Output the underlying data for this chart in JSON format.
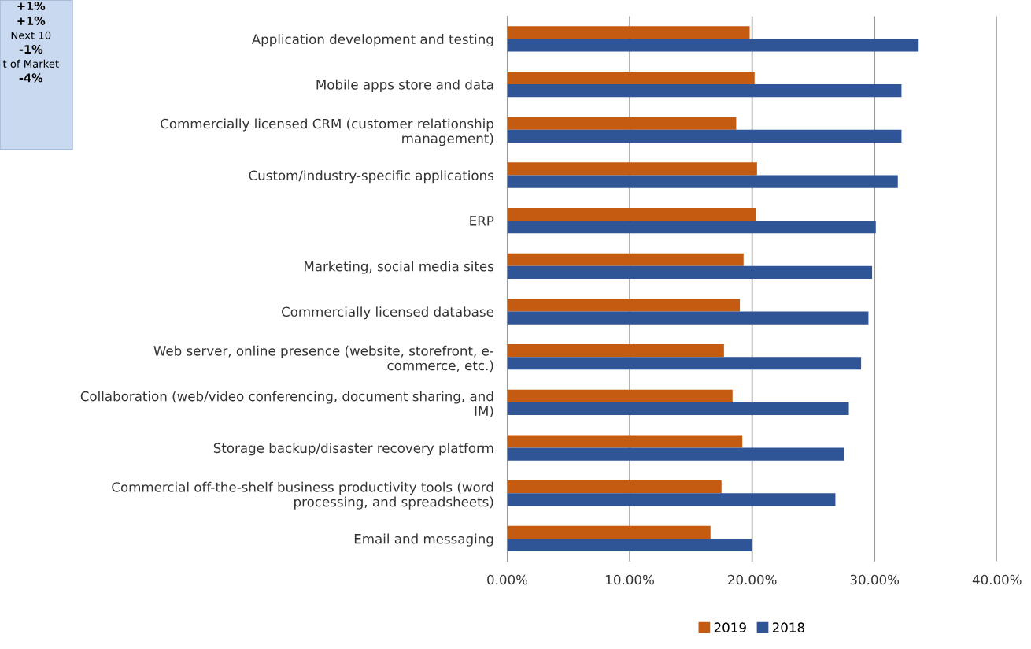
{
  "chart_data": {
    "type": "bar",
    "orientation": "horizontal",
    "categories": [
      "Application development and testing",
      "Mobile apps store and data",
      "Commercially licensed CRM (customer relationship\nmanagement)",
      "Custom/industry-specific applications",
      "ERP",
      "Marketing, social media sites",
      "Commercially licensed database",
      "Web server, online presence (website, storefront, e-\ncommerce, etc.)",
      "Collaboration (web/video conferencing, document sharing, and\nIM)",
      "Storage backup/disaster recovery platform",
      "Commercial off-the-shelf business productivity tools (word\nprocessing, and spreadsheets)",
      "Email and messaging"
    ],
    "series": [
      {
        "name": "2019",
        "color": "#c55a11",
        "values": [
          19.8,
          20.2,
          18.7,
          20.4,
          20.3,
          19.3,
          19.0,
          17.7,
          18.4,
          19.2,
          17.5,
          16.6
        ]
      },
      {
        "name": "2018",
        "color": "#2f5597",
        "values": [
          33.6,
          32.2,
          32.2,
          31.9,
          30.1,
          29.8,
          29.5,
          28.9,
          27.9,
          27.5,
          26.8,
          20.0
        ]
      }
    ],
    "xlim": [
      0,
      40
    ],
    "xticks": [
      {
        "value": 0,
        "label": "0.00%"
      },
      {
        "value": 10,
        "label": "10.00%"
      },
      {
        "value": 20,
        "label": "20.00%"
      },
      {
        "value": 30,
        "label": "30.00%"
      },
      {
        "value": 40,
        "label": "40.00%"
      }
    ],
    "grid": "x",
    "legend": "bottom",
    "annotations": [
      "+1%",
      "+1%",
      "Next 10",
      "-1%",
      "t of Market",
      "-4%"
    ]
  }
}
